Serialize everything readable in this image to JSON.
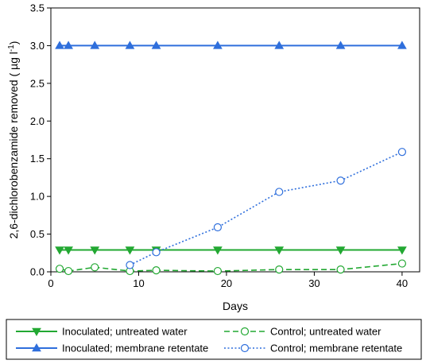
{
  "chart_data": {
    "type": "line",
    "xlabel": "Days",
    "ylabel": "2,6-dichlorobenzamide removed ( µg l",
    "ylabel_sup": "-1",
    "ylabel_close": ")",
    "xlim": [
      0,
      42
    ],
    "ylim": [
      0,
      3.5
    ],
    "xticks": [
      0,
      10,
      20,
      30,
      40
    ],
    "xtick_labels": [
      "0",
      "10",
      "20",
      "30",
      "40"
    ],
    "yticks": [
      0,
      0.5,
      1.0,
      1.5,
      2.0,
      2.5,
      3.0,
      3.5
    ],
    "ytick_labels": [
      "0.0",
      "0.5",
      "1.0",
      "1.5",
      "2.0",
      "2.5",
      "3.0",
      "3.5"
    ],
    "grid": false,
    "legend_position": "bottom",
    "series": [
      {
        "name": "Inoculated; untreated water",
        "color": "#22a832",
        "marker": "triangle-down",
        "filled": true,
        "line": "solid",
        "x": [
          1,
          2,
          5,
          9,
          12,
          19,
          26,
          33,
          40
        ],
        "y": [
          0.29,
          0.29,
          0.29,
          0.29,
          0.29,
          0.29,
          0.29,
          0.29,
          0.29
        ]
      },
      {
        "name": "Inoculated; membrane retentate",
        "color": "#2f6fdc",
        "marker": "triangle-up",
        "filled": true,
        "line": "solid",
        "x": [
          1,
          2,
          5,
          9,
          12,
          19,
          26,
          33,
          40
        ],
        "y": [
          3.0,
          3.0,
          3.0,
          3.0,
          3.0,
          3.0,
          3.0,
          3.0,
          3.0
        ]
      },
      {
        "name": "Control; untreated water",
        "color": "#22a832",
        "marker": "circle",
        "filled": false,
        "line": "dashed",
        "x": [
          1,
          2,
          5,
          9,
          12,
          19,
          26,
          33,
          40
        ],
        "y": [
          0.04,
          0.01,
          0.06,
          0.01,
          0.02,
          0.01,
          0.03,
          0.03,
          0.11
        ]
      },
      {
        "name": "Control; membrane retentate",
        "color": "#2f6fdc",
        "marker": "circle",
        "filled": false,
        "line": "dotted",
        "x": [
          9,
          12,
          19,
          26,
          33,
          40
        ],
        "y": [
          0.09,
          0.26,
          0.59,
          1.06,
          1.21,
          1.59
        ]
      }
    ]
  }
}
